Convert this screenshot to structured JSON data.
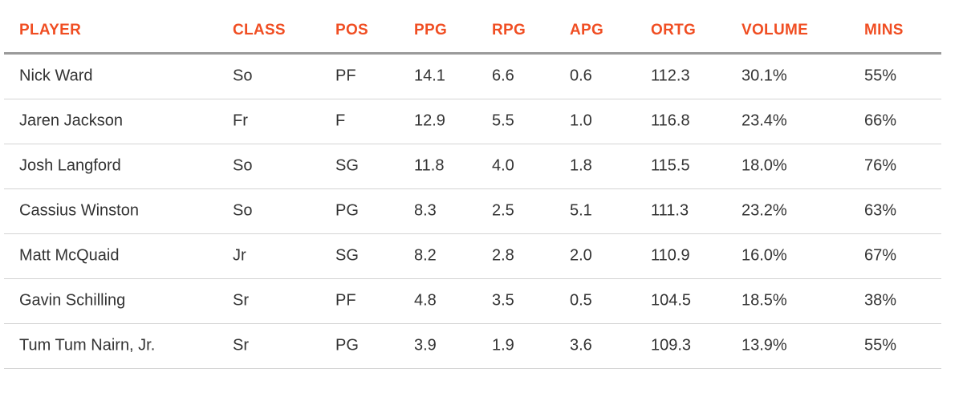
{
  "table": {
    "headers": [
      "PLAYER",
      "CLASS",
      "POS",
      "PPG",
      "RPG",
      "APG",
      "ORTG",
      "VOLUME",
      "MINS"
    ],
    "rows": [
      [
        "Nick Ward",
        "So",
        "PF",
        "14.1",
        "6.6",
        "0.6",
        "112.3",
        "30.1%",
        "55%"
      ],
      [
        "Jaren Jackson",
        "Fr",
        "F",
        "12.9",
        "5.5",
        "1.0",
        "116.8",
        "23.4%",
        "66%"
      ],
      [
        "Josh Langford",
        "So",
        "SG",
        "11.8",
        "4.0",
        "1.8",
        "115.5",
        "18.0%",
        "76%"
      ],
      [
        "Cassius Winston",
        "So",
        "PG",
        "8.3",
        "2.5",
        "5.1",
        "111.3",
        "23.2%",
        "63%"
      ],
      [
        "Matt McQuaid",
        "Jr",
        "SG",
        "8.2",
        "2.8",
        "2.0",
        "110.9",
        "16.0%",
        "67%"
      ],
      [
        "Gavin Schilling",
        "Sr",
        "PF",
        "4.8",
        "3.5",
        "0.5",
        "104.5",
        "18.5%",
        "38%"
      ],
      [
        "Tum Tum Nairn, Jr.",
        "Sr",
        "PG",
        "3.9",
        "1.9",
        "3.6",
        "109.3",
        "13.9%",
        "55%"
      ]
    ]
  }
}
